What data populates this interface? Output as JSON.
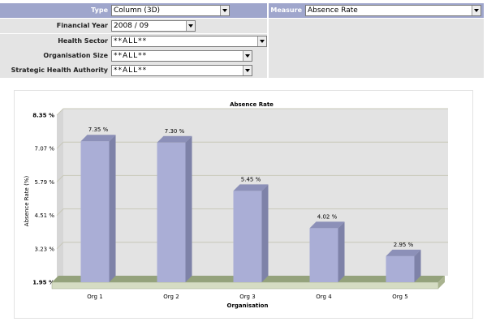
{
  "filters": {
    "type": {
      "label": "Type",
      "value": "Column (3D)"
    },
    "measure": {
      "label": "Measure",
      "value": "Absence Rate"
    },
    "financial_year": {
      "label": "Financial Year",
      "value": "2008 / 09"
    },
    "health_sector": {
      "label": "Health Sector",
      "value": "**ALL**"
    },
    "organisation_size": {
      "label": "Organisation Size",
      "value": "**ALL**"
    },
    "strategic_health_authority": {
      "label": "Strategic Health Authority",
      "value": "**ALL**"
    }
  },
  "colors": {
    "header_blue": "#9fa6cc",
    "panel_grey": "#e4e4e4",
    "plot_background": "#e3e3e3",
    "bar_front": "#aaaed6",
    "bar_side": "#7e82a8",
    "bar_top": "#8c90b8",
    "floor": "#94a27c"
  },
  "chart_data": {
    "type": "bar",
    "title": "Absence Rate",
    "xlabel": "Organisation",
    "ylabel": "Absence Rate (%)",
    "categories": [
      "Org 1",
      "Org 2",
      "Org 3",
      "Org 4",
      "Org 5"
    ],
    "values": [
      7.35,
      7.3,
      5.45,
      4.02,
      2.95
    ],
    "value_labels": [
      "7.35 %",
      "7.30 %",
      "5.45 %",
      "4.02 %",
      "2.95 %"
    ],
    "ylim": [
      1.95,
      8.35
    ],
    "yticks": [
      1.95,
      3.23,
      4.51,
      5.79,
      7.07,
      8.35
    ],
    "ytick_labels": [
      "1.95 %",
      "3.23 %",
      "4.51 %",
      "5.79 %",
      "7.07 %",
      "8.35 %"
    ],
    "grid": true,
    "style": "3d-column"
  }
}
